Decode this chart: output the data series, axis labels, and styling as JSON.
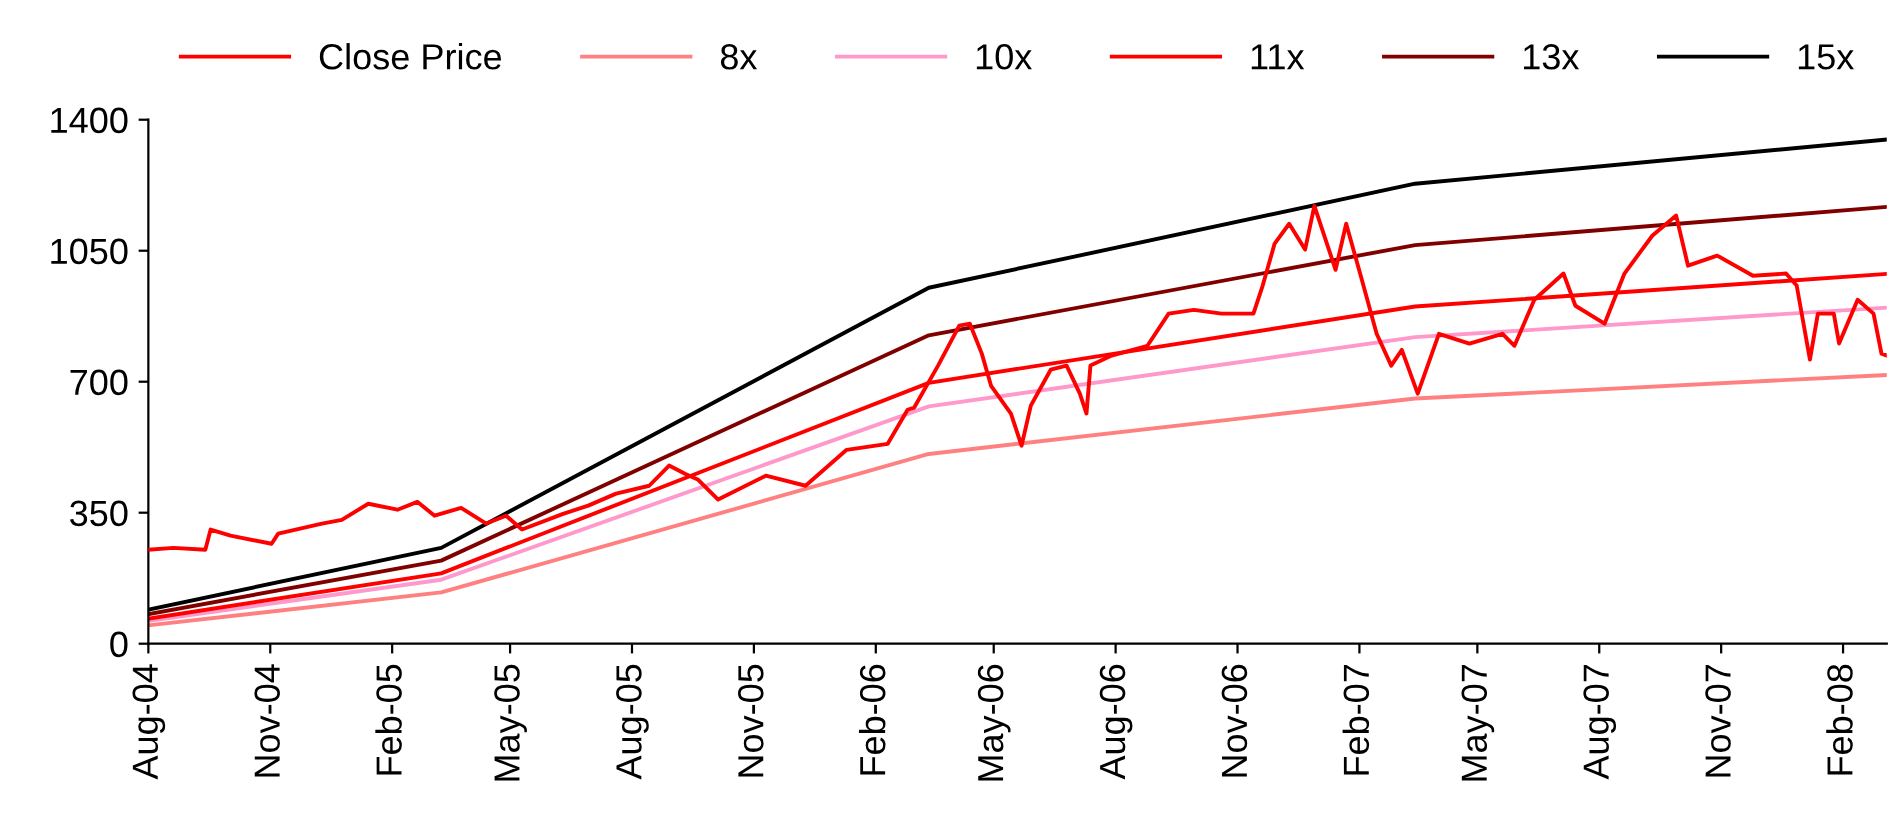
{
  "chart_data": {
    "type": "line",
    "legend": "top",
    "grid": false,
    "marker": "none",
    "line_style": "solid",
    "ylim": [
      0,
      1400
    ],
    "yticks": [
      0,
      350,
      700,
      1050,
      1400
    ],
    "xlim": [
      "2004-08-01",
      "2008-03-05"
    ],
    "xticks": [
      {
        "value": "2004-08-01",
        "label": "Aug-04"
      },
      {
        "value": "2004-11-01",
        "label": "Nov-04"
      },
      {
        "value": "2005-02-01",
        "label": "Feb-05"
      },
      {
        "value": "2005-05-01",
        "label": "May-05"
      },
      {
        "value": "2005-08-01",
        "label": "Aug-05"
      },
      {
        "value": "2005-11-01",
        "label": "Nov-05"
      },
      {
        "value": "2006-02-01",
        "label": "Feb-06"
      },
      {
        "value": "2006-05-01",
        "label": "May-06"
      },
      {
        "value": "2006-08-01",
        "label": "Aug-06"
      },
      {
        "value": "2006-11-01",
        "label": "Nov-06"
      },
      {
        "value": "2007-02-01",
        "label": "Feb-07"
      },
      {
        "value": "2007-05-01",
        "label": "May-07"
      },
      {
        "value": "2007-08-01",
        "label": "Aug-07"
      },
      {
        "value": "2007-11-01",
        "label": "Nov-07"
      },
      {
        "value": "2008-02-01",
        "label": "Feb-08"
      }
    ],
    "series": [
      {
        "name": "Close Price",
        "color": "#ff0000",
        "x": [
          "2004-08-01",
          "2004-08-20",
          "2004-09-13",
          "2004-09-17",
          "2004-10-02",
          "2004-11-02",
          "2004-11-07",
          "2004-12-10",
          "2004-12-25",
          "2005-01-14",
          "2005-02-05",
          "2005-02-20",
          "2005-03-05",
          "2005-03-25",
          "2005-04-13",
          "2005-04-28",
          "2005-05-10",
          "2005-06-10",
          "2005-06-29",
          "2005-07-20",
          "2005-08-14",
          "2005-08-29",
          "2005-09-10",
          "2005-09-20",
          "2005-10-05",
          "2005-11-10",
          "2005-12-10",
          "2006-01-10",
          "2006-02-10",
          "2006-02-25",
          "2006-03-02",
          "2006-03-20",
          "2006-04-05",
          "2006-04-13",
          "2006-04-22",
          "2006-04-29",
          "2006-05-14",
          "2006-05-22",
          "2006-05-29",
          "2006-06-13",
          "2006-06-25",
          "2006-07-05",
          "2006-07-10",
          "2006-07-13",
          "2006-07-29",
          "2006-08-25",
          "2006-09-10",
          "2006-09-29",
          "2006-10-20",
          "2006-11-13",
          "2006-11-20",
          "2006-11-29",
          "2006-12-10",
          "2006-12-22",
          "2006-12-29",
          "2007-01-14",
          "2007-01-22",
          "2007-02-02",
          "2007-02-14",
          "2007-02-25",
          "2007-03-05",
          "2007-03-17",
          "2007-04-02",
          "2007-04-25",
          "2007-05-20",
          "2007-05-29",
          "2007-06-13",
          "2007-07-05",
          "2007-07-14",
          "2007-08-05",
          "2007-08-20",
          "2007-09-10",
          "2007-09-28",
          "2007-10-07",
          "2007-10-29",
          "2007-11-25",
          "2007-12-20",
          "2007-12-28",
          "2008-01-07",
          "2008-01-13",
          "2008-01-25",
          "2008-01-29",
          "2008-02-12",
          "2008-02-24",
          "2008-03-01",
          "2008-03-05"
        ],
        "values": [
          251,
          256,
          251,
          305,
          289,
          267,
          294,
          321,
          331,
          374,
          358,
          379,
          342,
          363,
          321,
          342,
          305,
          347,
          369,
          401,
          422,
          476,
          454,
          438,
          385,
          449,
          422,
          518,
          534,
          625,
          631,
          743,
          850,
          855,
          775,
          689,
          615,
          529,
          636,
          732,
          743,
          668,
          615,
          743,
          770,
          796,
          882,
          892,
          882,
          882,
          957,
          1069,
          1122,
          1053,
          1170,
          999,
          1122,
          983,
          828,
          743,
          785,
          668,
          828,
          802,
          828,
          796,
          919,
          989,
          903,
          855,
          989,
          1090,
          1144,
          1010,
          1037,
          983,
          989,
          957,
          759,
          882,
          882,
          802,
          919,
          882,
          775,
          770
        ]
      },
      {
        "name": "8x",
        "color": "#ff8080",
        "x": [
          "2004-08-01",
          "2005-03-10",
          "2006-03-13",
          "2007-03-15",
          "2008-03-05"
        ],
        "values": [
          49,
          137,
          507,
          655,
          718
        ]
      },
      {
        "name": "10x",
        "color": "#ff99cc",
        "x": [
          "2004-08-01",
          "2005-03-10",
          "2006-03-13",
          "2007-03-15",
          "2008-03-05"
        ],
        "values": [
          61,
          171,
          634,
          819,
          898
        ]
      },
      {
        "name": "11x",
        "color": "#ff0000",
        "x": [
          "2004-08-01",
          "2005-03-10",
          "2006-03-13",
          "2007-03-15",
          "2008-03-05"
        ],
        "values": [
          67,
          188,
          697,
          901,
          988
        ]
      },
      {
        "name": "13x",
        "color": "#800000",
        "x": [
          "2004-08-01",
          "2005-03-10",
          "2006-03-13",
          "2007-03-15",
          "2008-03-05"
        ],
        "values": [
          79,
          222,
          824,
          1065,
          1167
        ]
      },
      {
        "name": "15x",
        "color": "#000000",
        "x": [
          "2004-08-01",
          "2005-03-10",
          "2006-03-13",
          "2007-03-15",
          "2008-03-05"
        ],
        "values": [
          91,
          256,
          951,
          1229,
          1347
        ]
      }
    ]
  }
}
